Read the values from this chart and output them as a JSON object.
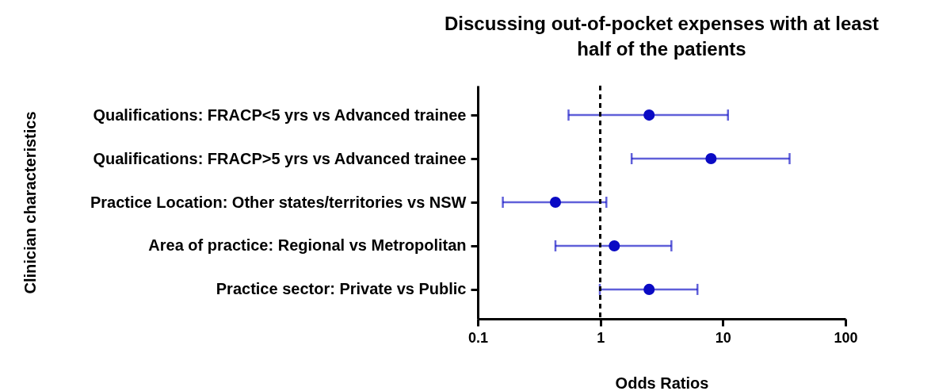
{
  "chart_data": {
    "type": "scatter",
    "orientation": "horizontal",
    "title": "Discussing out-of-pocket expenses with at least half of the patients",
    "xlabel": "Odds Ratios",
    "ylabel": "Clinician characteristics",
    "categories": [
      "Qualifications: FRACP<5 yrs vs Advanced trainee",
      "Qualifications: FRACP>5 yrs vs Advanced trainee",
      "Practice Location: Other states/territories vs NSW",
      "Area of practice: Regional vs Metropolitan",
      "Practice sector: Private vs Public"
    ],
    "series": [
      {
        "color": "#0a0ac4",
        "values": [
          2.5,
          8.0,
          0.43,
          1.3,
          2.5
        ],
        "errors": [
          [
            0.55,
            11
          ],
          [
            1.8,
            35
          ],
          [
            0.16,
            1.12
          ],
          [
            0.43,
            3.8
          ],
          [
            0.99,
            6.2
          ]
        ]
      }
    ],
    "log": "x",
    "xlim": [
      0.1,
      100
    ],
    "xticks": [
      0.1,
      1,
      10,
      100
    ],
    "marker": "circle",
    "ref_lines": [
      {
        "axis": "x",
        "value": 1,
        "color": "#000000",
        "line_style": "dashed"
      }
    ]
  }
}
